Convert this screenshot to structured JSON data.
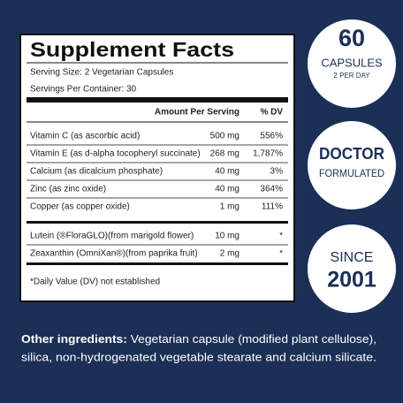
{
  "panel": {
    "title": "Supplement Facts",
    "serving_size": "Serving Size: 2 Vegetarian Capsules",
    "servings_per_container": "Servings Per Container: 30",
    "header": [
      "Amount Per Serving",
      "% DV"
    ],
    "rows": [
      [
        "Vitamin C (as ascorbic acid)",
        "500 mg",
        "556%"
      ],
      [
        "Vitamin E (as d-alpha tocopheryl succinate)",
        "268 mg",
        "1,787%"
      ],
      [
        "Calcium (as dicalcium phosphate)",
        "40 mg",
        "3%"
      ],
      [
        "Zinc (as zinc oxide)",
        "40 mg",
        "364%"
      ],
      [
        "Copper (as copper oxide)",
        "1 mg",
        "111%"
      ]
    ],
    "rows2": [
      [
        "Lutein (®FloraGLO)(from marigold flower)",
        "10 mg",
        "*"
      ],
      [
        "Zeaxanthin (OmniXan®)(from paprika fruit)",
        "2 mg",
        "*"
      ]
    ],
    "footnote": "*Daily Value (DV) not established"
  },
  "badges": [
    {
      "big": "60",
      "line2": "CAPSULES",
      "line3": "2 PER DAY"
    },
    {
      "top": "DOCTOR",
      "bottom": "FORMULATED"
    },
    {
      "top": "SINCE",
      "bottom": "2001"
    }
  ],
  "other_ingredients": {
    "label": "Other ingredients:",
    "lines": [
      "Vegetarian capsule (modified plant cellulose),",
      "silica, non-hydrogenated vegetable stearate and calcium silicate."
    ]
  }
}
